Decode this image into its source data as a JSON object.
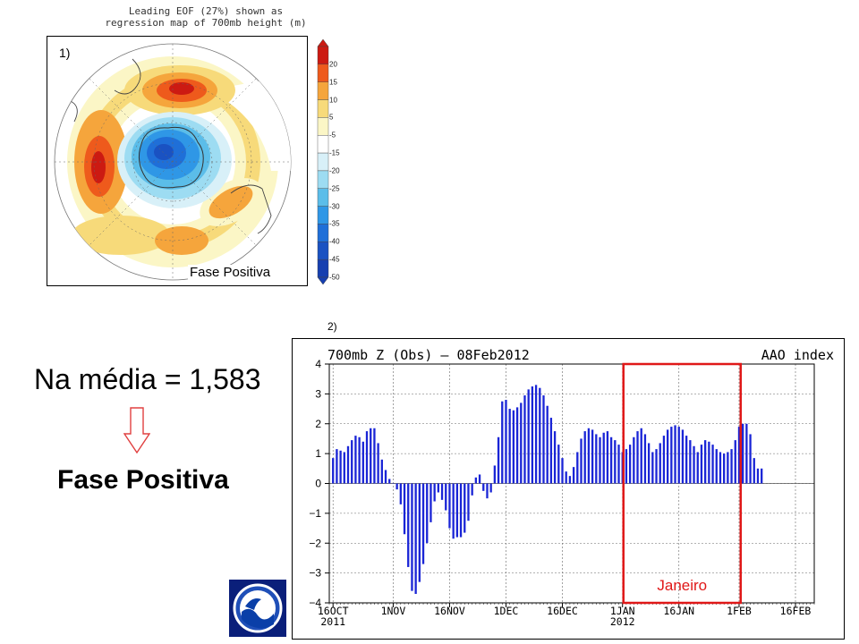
{
  "map": {
    "title_line1": "Leading EOF (27%) shown as",
    "title_line2": "regression map of 700mb height (m)",
    "panel_number": "1)",
    "caption": "Fase Positiva",
    "colorbar_labels": [
      "20",
      "15",
      "10",
      "5",
      "-5",
      "-15",
      "-20",
      "-25",
      "-30",
      "-35",
      "-40",
      "-45",
      "-50"
    ],
    "colorbar_colors": [
      "#cc1a12",
      "#ee5a1c",
      "#f5a53c",
      "#f7da7a",
      "#fbf6c6",
      "#ffffff",
      "#d8f0f8",
      "#9ddcf2",
      "#5bbde9",
      "#2f97e6",
      "#1f6fd8",
      "#1a52c2",
      "#163fb0"
    ]
  },
  "text": {
    "mean_value": "Na média = 1,583",
    "phase": "Fase Positiva"
  },
  "chart_panel_number": "2)",
  "chart_data": {
    "type": "bar",
    "title": "700mb Z (Obs) – 08Feb2012",
    "title_right": "AAO index",
    "x_ticks": [
      {
        "day": 0,
        "label": "16OCT"
      },
      {
        "day": 16,
        "label": "1NOV"
      },
      {
        "day": 31,
        "label": "16NOV"
      },
      {
        "day": 46,
        "label": "1DEC"
      },
      {
        "day": 61,
        "label": "16DEC"
      },
      {
        "day": 77,
        "label": "1JAN"
      },
      {
        "day": 92,
        "label": "16JAN"
      },
      {
        "day": 108,
        "label": "1FEB"
      },
      {
        "day": 123,
        "label": "16FEB"
      }
    ],
    "year_labels": [
      {
        "day": 0,
        "label": "2011"
      },
      {
        "day": 77,
        "label": "2012"
      }
    ],
    "ylim": [
      -4,
      4
    ],
    "y_ticks": [
      -4,
      -3,
      -2,
      -1,
      0,
      1,
      2,
      3,
      4
    ],
    "xlim": [
      -1,
      128
    ],
    "bar_color": "#1a25d6",
    "start_date": "2011-10-16",
    "values": [
      0.85,
      1.15,
      1.1,
      1.05,
      1.25,
      1.45,
      1.6,
      1.55,
      1.4,
      1.75,
      1.85,
      1.85,
      1.35,
      0.8,
      0.45,
      0.15,
      0.0,
      -0.2,
      -0.7,
      -1.7,
      -2.8,
      -3.6,
      -3.7,
      -3.3,
      -2.7,
      -2.0,
      -1.3,
      -0.6,
      -0.3,
      -0.55,
      -0.9,
      -1.5,
      -1.85,
      -1.8,
      -1.8,
      -1.65,
      -1.25,
      -0.4,
      0.2,
      0.3,
      -0.25,
      -0.5,
      -0.3,
      0.6,
      1.55,
      2.75,
      2.8,
      2.5,
      2.45,
      2.55,
      2.7,
      2.95,
      3.15,
      3.25,
      3.3,
      3.2,
      2.95,
      2.6,
      2.2,
      1.75,
      1.3,
      0.85,
      0.4,
      0.25,
      0.55,
      1.05,
      1.5,
      1.75,
      1.85,
      1.8,
      1.65,
      1.55,
      1.7,
      1.75,
      1.55,
      1.45,
      1.3,
      1.05,
      1.15,
      1.3,
      1.55,
      1.75,
      1.85,
      1.65,
      1.35,
      1.05,
      1.15,
      1.35,
      1.6,
      1.8,
      1.9,
      1.95,
      1.9,
      1.8,
      1.6,
      1.45,
      1.25,
      1.05,
      1.3,
      1.45,
      1.4,
      1.3,
      1.15,
      1.05,
      1.0,
      1.05,
      1.15,
      1.45,
      1.9,
      2.0,
      2.0,
      1.65,
      0.85,
      0.5,
      0.5
    ],
    "highlight": {
      "label": "Janeiro",
      "start_day": 77,
      "end_day": 107,
      "color": "#e01818"
    }
  }
}
